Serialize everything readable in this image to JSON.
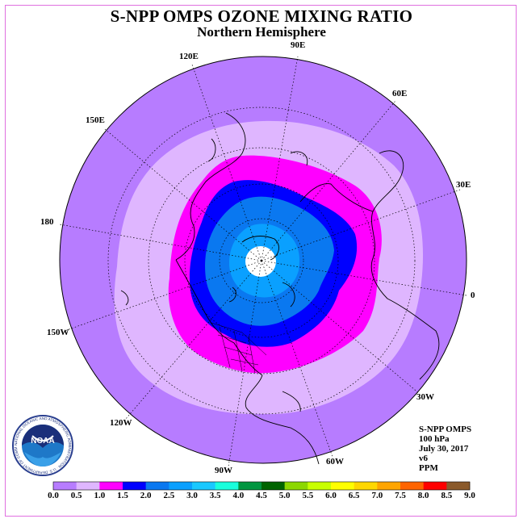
{
  "title": "S-NPP OMPS OZONE MIXING RATIO",
  "subtitle": "Northern Hemisphere",
  "lon_labels": [
    {
      "text": "90E"
    },
    {
      "text": "60E"
    },
    {
      "text": "30E"
    },
    {
      "text": "0"
    },
    {
      "text": "30W"
    },
    {
      "text": "60W"
    },
    {
      "text": "90W"
    },
    {
      "text": "120W"
    },
    {
      "text": "150W"
    },
    {
      "text": "180"
    },
    {
      "text": "150E"
    },
    {
      "text": "120E"
    }
  ],
  "info": {
    "instrument": "S-NPP OMPS",
    "level": "100 hPa",
    "date": "July 30, 2017",
    "version": "v6",
    "units": "PPM"
  },
  "logo": {
    "text": "NOAA",
    "ring_text": "NATIONAL OCEANIC AND ATMOSPHERIC ADMINISTRATION · U.S. DEPARTMENT OF COMMERCE"
  },
  "colors": {
    "band_0_0.5": "#b77cff",
    "band_0.5_1.0": "#dfb6ff",
    "band_1.0_1.5": "#ff00ff",
    "band_1.5_2.0": "#0000ff",
    "band_2.0_2.5": "#0a78f0",
    "band_2.5_3.0": "#0aa0ff",
    "no_data": "#ffffff"
  },
  "color_scale": {
    "labels": [
      "0.0",
      "0.5",
      "1.0",
      "1.5",
      "2.0",
      "2.5",
      "3.0",
      "3.5",
      "4.0",
      "4.5",
      "5.0",
      "5.5",
      "6.0",
      "6.5",
      "7.0",
      "7.5",
      "8.0",
      "8.5",
      "9.0"
    ],
    "colors": [
      "#b77cff",
      "#dfb6ff",
      "#ff00ff",
      "#0000ff",
      "#0a78f0",
      "#0aa0ff",
      "#19c8ff",
      "#19ffdc",
      "#009640",
      "#006400",
      "#8cd700",
      "#c8ff00",
      "#ffff00",
      "#ffd700",
      "#ffa500",
      "#ff6400",
      "#ff0000",
      "#8b5a2b"
    ]
  },
  "chart_data": {
    "type": "heatmap",
    "projection": "north-polar-stereographic",
    "parameter": "ozone mixing ratio",
    "level": "100 hPa",
    "units": "PPM",
    "scale_min": 0.0,
    "scale_max": 9.0,
    "scale_step": 0.5
  }
}
